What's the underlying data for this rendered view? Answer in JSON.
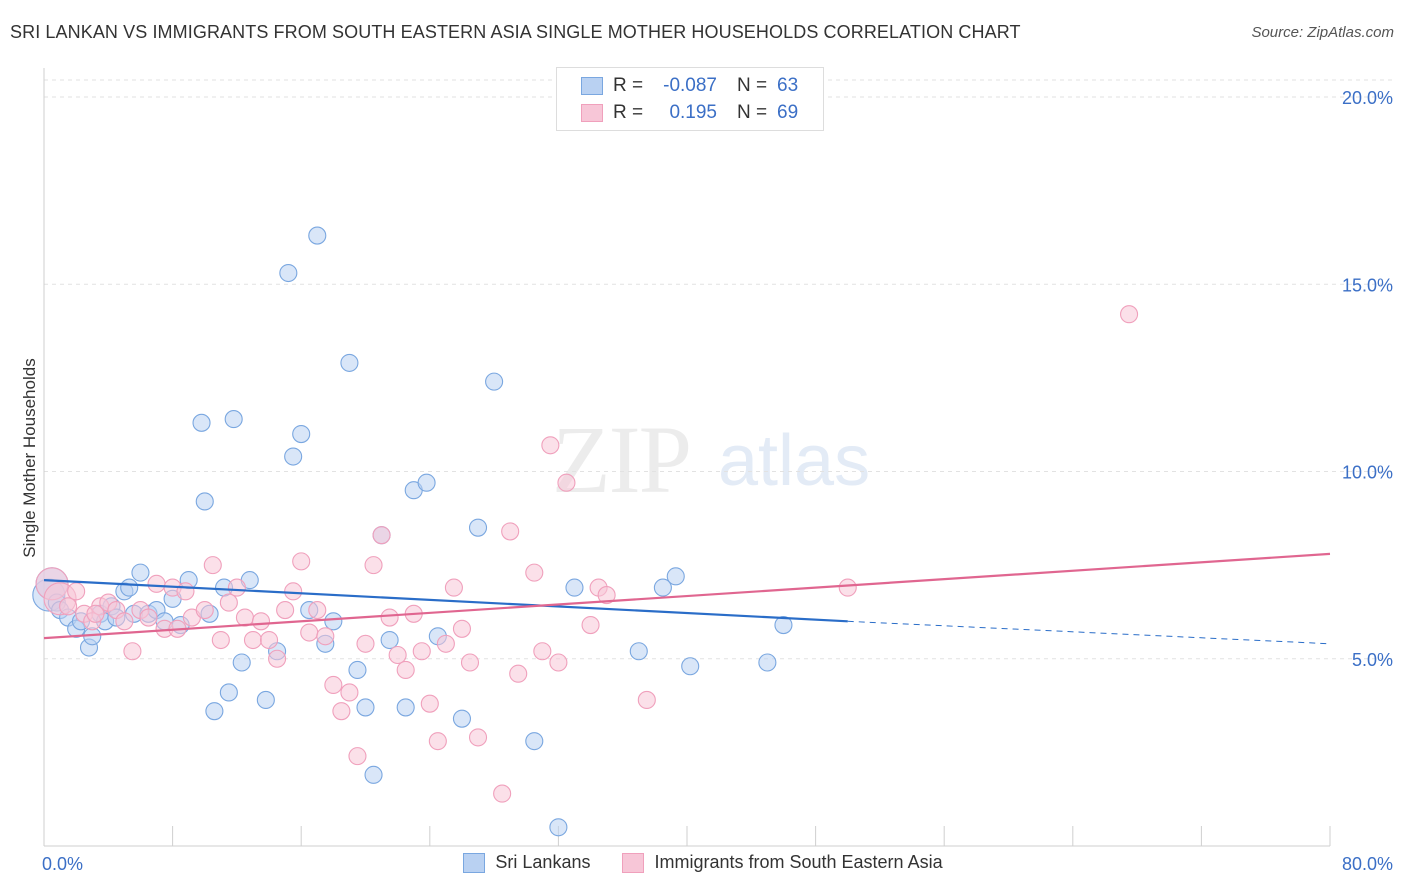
{
  "title": "SRI LANKAN VS IMMIGRANTS FROM SOUTH EASTERN ASIA SINGLE MOTHER HOUSEHOLDS CORRELATION CHART",
  "source": "Source: ZipAtlas.com",
  "watermark": {
    "zip": "ZIP",
    "atlas": "atlas"
  },
  "stats": [
    {
      "r_label": "R =",
      "r_value": "-0.087",
      "n_label": "N =",
      "n_value": "63"
    },
    {
      "r_label": "R =",
      "r_value": "0.195",
      "n_label": "N =",
      "n_value": "69"
    }
  ],
  "chart_data": {
    "type": "scatter",
    "title": "SRI LANKAN VS IMMIGRANTS FROM SOUTH EASTERN ASIA SINGLE MOTHER HOUSEHOLDS CORRELATION CHART",
    "xlabel": "",
    "ylabel": "Single Mother Households",
    "xlim": [
      0,
      80
    ],
    "ylim": [
      0,
      20
    ],
    "x_tick_labels": [
      "0.0%",
      "80.0%"
    ],
    "y_ticks": [
      5,
      10,
      15,
      20
    ],
    "y_tick_labels": [
      "5.0%",
      "10.0%",
      "15.0%",
      "20.0%"
    ],
    "grid": true,
    "legend_position": "bottom",
    "series": [
      {
        "name": "Sri Lankans",
        "color": "#7aa7e0",
        "fill": "#b9d1f2",
        "line_color": "#2a6dc8",
        "trend": {
          "x0": 0,
          "y0": 7.1,
          "x1": 50,
          "y1": 6.0,
          "dash_x1": 80,
          "dash_y1": 5.4
        },
        "points": [
          [
            0.3,
            6.7
          ],
          [
            0.5,
            7.0
          ],
          [
            0.8,
            6.5
          ],
          [
            1.0,
            6.3
          ],
          [
            1.5,
            6.1
          ],
          [
            2.0,
            5.8
          ],
          [
            2.3,
            6.0
          ],
          [
            2.8,
            5.3
          ],
          [
            3.0,
            5.6
          ],
          [
            3.5,
            6.2
          ],
          [
            3.8,
            6.0
          ],
          [
            4.2,
            6.4
          ],
          [
            4.5,
            6.1
          ],
          [
            5.0,
            6.8
          ],
          [
            5.3,
            6.9
          ],
          [
            5.6,
            6.2
          ],
          [
            6.0,
            7.3
          ],
          [
            6.5,
            6.2
          ],
          [
            7.0,
            6.3
          ],
          [
            7.5,
            6.0
          ],
          [
            8.0,
            6.6
          ],
          [
            8.5,
            5.9
          ],
          [
            9.0,
            7.1
          ],
          [
            9.8,
            11.3
          ],
          [
            10.0,
            9.2
          ],
          [
            10.3,
            6.2
          ],
          [
            10.6,
            3.6
          ],
          [
            11.2,
            6.9
          ],
          [
            11.5,
            4.1
          ],
          [
            11.8,
            11.4
          ],
          [
            12.3,
            4.9
          ],
          [
            12.8,
            7.1
          ],
          [
            13.8,
            3.9
          ],
          [
            14.5,
            5.2
          ],
          [
            15.2,
            15.3
          ],
          [
            15.5,
            10.4
          ],
          [
            16.0,
            11.0
          ],
          [
            16.5,
            6.3
          ],
          [
            17.0,
            16.3
          ],
          [
            17.5,
            5.4
          ],
          [
            18.0,
            6.0
          ],
          [
            19.0,
            12.9
          ],
          [
            19.5,
            4.7
          ],
          [
            20.0,
            3.7
          ],
          [
            20.5,
            1.9
          ],
          [
            21.0,
            8.3
          ],
          [
            21.5,
            5.5
          ],
          [
            22.5,
            3.7
          ],
          [
            23.0,
            9.5
          ],
          [
            23.8,
            9.7
          ],
          [
            24.5,
            5.6
          ],
          [
            26.0,
            3.4
          ],
          [
            27.0,
            8.5
          ],
          [
            28.0,
            12.4
          ],
          [
            30.5,
            2.8
          ],
          [
            32.0,
            0.5
          ],
          [
            33.0,
            6.9
          ],
          [
            37.0,
            5.2
          ],
          [
            38.5,
            6.9
          ],
          [
            39.3,
            7.2
          ],
          [
            40.2,
            4.8
          ],
          [
            45.0,
            4.9
          ],
          [
            46.0,
            5.9
          ]
        ]
      },
      {
        "name": "Immigrants from South Eastern Asia",
        "color": "#f0a0bc",
        "fill": "#f7c6d7",
        "line_color": "#e06690",
        "trend": {
          "x0": 0,
          "y0": 5.55,
          "x1": 80,
          "y1": 7.8
        },
        "points": [
          [
            0.5,
            7.0
          ],
          [
            1.0,
            6.6
          ],
          [
            1.5,
            6.4
          ],
          [
            2.0,
            6.8
          ],
          [
            2.5,
            6.2
          ],
          [
            3.0,
            6.0
          ],
          [
            3.5,
            6.4
          ],
          [
            4.0,
            6.5
          ],
          [
            4.5,
            6.3
          ],
          [
            5.0,
            6.0
          ],
          [
            5.5,
            5.2
          ],
          [
            6.0,
            6.3
          ],
          [
            6.5,
            6.1
          ],
          [
            7.0,
            7.0
          ],
          [
            7.5,
            5.8
          ],
          [
            8.0,
            6.9
          ],
          [
            8.3,
            5.8
          ],
          [
            8.8,
            6.8
          ],
          [
            9.2,
            6.1
          ],
          [
            10.0,
            6.3
          ],
          [
            10.5,
            7.5
          ],
          [
            11.0,
            5.5
          ],
          [
            11.5,
            6.5
          ],
          [
            12.0,
            6.9
          ],
          [
            12.5,
            6.1
          ],
          [
            13.0,
            5.5
          ],
          [
            13.5,
            6.0
          ],
          [
            14.0,
            5.5
          ],
          [
            14.5,
            5.0
          ],
          [
            15.0,
            6.3
          ],
          [
            15.5,
            6.8
          ],
          [
            16.0,
            7.6
          ],
          [
            16.5,
            5.7
          ],
          [
            17.0,
            6.3
          ],
          [
            17.5,
            5.6
          ],
          [
            18.0,
            4.3
          ],
          [
            18.5,
            3.6
          ],
          [
            19.0,
            4.1
          ],
          [
            19.5,
            2.4
          ],
          [
            20.0,
            5.4
          ],
          [
            20.5,
            7.5
          ],
          [
            21.0,
            8.3
          ],
          [
            21.5,
            6.1
          ],
          [
            22.0,
            5.1
          ],
          [
            22.5,
            4.7
          ],
          [
            23.0,
            6.2
          ],
          [
            23.5,
            5.2
          ],
          [
            24.0,
            3.8
          ],
          [
            24.5,
            2.8
          ],
          [
            25.0,
            5.4
          ],
          [
            25.5,
            6.9
          ],
          [
            26.0,
            5.8
          ],
          [
            26.5,
            4.9
          ],
          [
            27.0,
            2.9
          ],
          [
            28.5,
            1.4
          ],
          [
            29.0,
            8.4
          ],
          [
            29.5,
            4.6
          ],
          [
            30.5,
            7.3
          ],
          [
            31.0,
            5.2
          ],
          [
            31.5,
            10.7
          ],
          [
            32.0,
            4.9
          ],
          [
            32.5,
            9.7
          ],
          [
            34.0,
            5.9
          ],
          [
            34.5,
            6.9
          ],
          [
            35.0,
            6.7
          ],
          [
            37.5,
            3.9
          ],
          [
            50.0,
            6.9
          ],
          [
            67.5,
            14.2
          ],
          [
            3.2,
            6.2
          ]
        ]
      }
    ]
  },
  "legend": {
    "items": [
      "Sri Lankans",
      "Immigrants from South Eastern Asia"
    ]
  }
}
